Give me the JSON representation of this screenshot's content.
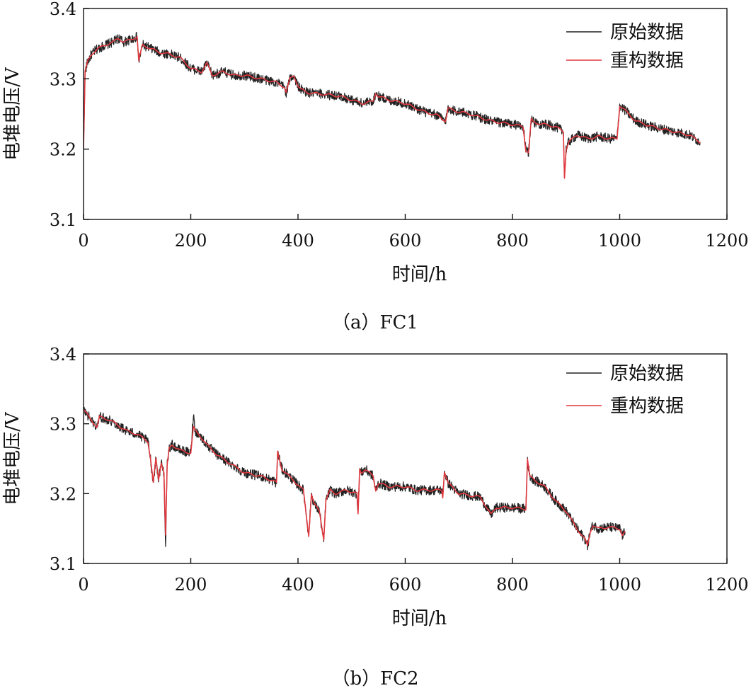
{
  "chart_data": [
    {
      "type": "line",
      "caption": "（a）FC1",
      "xlabel": "时间/h",
      "ylabel": "电堆电压/V",
      "xlim": [
        0,
        1200
      ],
      "ylim": [
        3.1,
        3.4
      ],
      "xticks": [
        0,
        200,
        400,
        600,
        800,
        1000,
        1200
      ],
      "yticks": [
        3.1,
        3.2,
        3.3,
        3.4
      ],
      "ytick_labels": [
        "3.1",
        "3.2",
        "3.3",
        "3.4"
      ],
      "legend_position": "top-right",
      "grid": false,
      "series": [
        {
          "name": "原始数据",
          "color": "#222222",
          "noise": 0.007,
          "x": [
            0,
            3,
            8,
            15,
            25,
            40,
            55,
            65,
            75,
            85,
            95,
            100,
            103,
            110,
            120,
            140,
            160,
            180,
            200,
            220,
            230,
            240,
            260,
            280,
            300,
            330,
            360,
            375,
            378,
            385,
            392,
            400,
            405,
            420,
            450,
            480,
            500,
            520,
            540,
            545,
            550,
            570,
            600,
            620,
            640,
            660,
            675,
            680,
            690,
            720,
            760,
            800,
            820,
            825,
            830,
            835,
            840,
            860,
            880,
            895,
            897,
            900,
            905,
            920,
            940,
            960,
            980,
            990,
            995,
            1000,
            1010,
            1030,
            1060,
            1100,
            1130,
            1150
          ],
          "y": [
            3.2,
            3.31,
            3.325,
            3.335,
            3.342,
            3.348,
            3.352,
            3.358,
            3.352,
            3.355,
            3.358,
            3.36,
            3.325,
            3.348,
            3.345,
            3.338,
            3.335,
            3.33,
            3.315,
            3.31,
            3.322,
            3.305,
            3.31,
            3.305,
            3.305,
            3.3,
            3.295,
            3.288,
            3.28,
            3.3,
            3.305,
            3.29,
            3.285,
            3.28,
            3.278,
            3.275,
            3.27,
            3.265,
            3.268,
            3.28,
            3.275,
            3.27,
            3.265,
            3.258,
            3.252,
            3.248,
            3.24,
            3.258,
            3.255,
            3.25,
            3.24,
            3.235,
            3.232,
            3.198,
            3.195,
            3.242,
            3.238,
            3.235,
            3.232,
            3.225,
            3.16,
            3.2,
            3.21,
            3.22,
            3.215,
            3.218,
            3.215,
            3.215,
            3.215,
            3.262,
            3.255,
            3.24,
            3.232,
            3.225,
            3.22,
            3.21
          ]
        },
        {
          "name": "重构数据",
          "color": "#e0383e",
          "noise": 0.0,
          "x": [
            0,
            3,
            8,
            15,
            25,
            40,
            55,
            65,
            75,
            85,
            95,
            100,
            103,
            110,
            120,
            140,
            160,
            180,
            200,
            220,
            230,
            240,
            260,
            280,
            300,
            330,
            360,
            375,
            378,
            385,
            392,
            400,
            405,
            420,
            450,
            480,
            500,
            520,
            540,
            545,
            550,
            570,
            600,
            620,
            640,
            660,
            675,
            680,
            690,
            720,
            760,
            800,
            820,
            825,
            830,
            835,
            840,
            860,
            880,
            895,
            897,
            900,
            905,
            920,
            940,
            960,
            980,
            990,
            995,
            1000,
            1010,
            1030,
            1060,
            1100,
            1130,
            1150
          ],
          "y": [
            3.2,
            3.31,
            3.325,
            3.335,
            3.342,
            3.348,
            3.352,
            3.358,
            3.352,
            3.355,
            3.358,
            3.36,
            3.325,
            3.348,
            3.345,
            3.338,
            3.335,
            3.33,
            3.315,
            3.31,
            3.322,
            3.305,
            3.31,
            3.305,
            3.305,
            3.3,
            3.295,
            3.288,
            3.28,
            3.3,
            3.305,
            3.29,
            3.285,
            3.28,
            3.278,
            3.275,
            3.27,
            3.265,
            3.268,
            3.28,
            3.275,
            3.27,
            3.265,
            3.258,
            3.252,
            3.248,
            3.24,
            3.258,
            3.255,
            3.25,
            3.24,
            3.235,
            3.232,
            3.198,
            3.195,
            3.242,
            3.238,
            3.235,
            3.232,
            3.225,
            3.16,
            3.2,
            3.21,
            3.22,
            3.215,
            3.218,
            3.215,
            3.215,
            3.215,
            3.262,
            3.255,
            3.24,
            3.232,
            3.225,
            3.22,
            3.21
          ]
        }
      ]
    },
    {
      "type": "line",
      "caption": "（b）FC2",
      "xlabel": "时间/h",
      "ylabel": "电堆电压/V",
      "xlim": [
        0,
        1200
      ],
      "ylim": [
        3.1,
        3.4
      ],
      "xticks": [
        0,
        200,
        400,
        600,
        800,
        1000,
        1200
      ],
      "yticks": [
        3.1,
        3.2,
        3.3,
        3.4
      ],
      "ytick_labels": [
        "3.1",
        "3.2",
        "3.3",
        "3.4"
      ],
      "legend_position": "top-right",
      "grid": false,
      "series": [
        {
          "name": "原始数据",
          "color": "#222222",
          "noise": 0.007,
          "x": [
            0,
            10,
            20,
            25,
            30,
            50,
            80,
            100,
            120,
            125,
            130,
            135,
            140,
            145,
            150,
            153,
            156,
            160,
            165,
            180,
            200,
            205,
            208,
            215,
            230,
            250,
            270,
            300,
            330,
            355,
            360,
            362,
            370,
            390,
            410,
            420,
            425,
            430,
            440,
            448,
            452,
            460,
            470,
            490,
            510,
            512,
            515,
            518,
            525,
            540,
            545,
            550,
            570,
            600,
            620,
            650,
            668,
            670,
            673,
            680,
            700,
            740,
            760,
            770,
            780,
            800,
            825,
            828,
            832,
            840,
            860,
            880,
            900,
            920,
            935,
            940,
            945,
            950,
            960,
            980,
            1000,
            1005,
            1010
          ],
          "y": [
            3.32,
            3.31,
            3.3,
            3.295,
            3.31,
            3.305,
            3.29,
            3.285,
            3.275,
            3.25,
            3.215,
            3.25,
            3.22,
            3.245,
            3.23,
            3.12,
            3.24,
            3.265,
            3.27,
            3.262,
            3.258,
            3.315,
            3.29,
            3.285,
            3.27,
            3.255,
            3.245,
            3.23,
            3.225,
            3.218,
            3.215,
            3.26,
            3.235,
            3.22,
            3.205,
            3.14,
            3.2,
            3.185,
            3.175,
            3.13,
            3.19,
            3.205,
            3.2,
            3.205,
            3.2,
            3.17,
            3.235,
            3.23,
            3.235,
            3.225,
            3.205,
            3.215,
            3.21,
            3.21,
            3.205,
            3.205,
            3.205,
            3.195,
            3.232,
            3.215,
            3.2,
            3.195,
            3.17,
            3.18,
            3.18,
            3.18,
            3.178,
            3.25,
            3.225,
            3.22,
            3.21,
            3.19,
            3.175,
            3.15,
            3.135,
            3.125,
            3.145,
            3.155,
            3.15,
            3.152,
            3.15,
            3.14,
            3.145
          ]
        },
        {
          "name": "重构数据",
          "color": "#e0383e",
          "noise": 0.0,
          "x": [
            0,
            10,
            20,
            25,
            30,
            50,
            80,
            100,
            120,
            125,
            130,
            135,
            140,
            145,
            150,
            153,
            156,
            160,
            165,
            180,
            200,
            205,
            208,
            215,
            230,
            250,
            270,
            300,
            330,
            355,
            360,
            362,
            370,
            390,
            410,
            420,
            425,
            430,
            440,
            448,
            452,
            460,
            470,
            490,
            510,
            512,
            515,
            518,
            525,
            540,
            545,
            550,
            570,
            600,
            620,
            650,
            668,
            670,
            673,
            680,
            700,
            740,
            760,
            770,
            780,
            800,
            825,
            828,
            832,
            840,
            860,
            880,
            900,
            920,
            935,
            940,
            945,
            950,
            960,
            980,
            1000,
            1005,
            1010
          ],
          "y": [
            3.32,
            3.31,
            3.3,
            3.295,
            3.31,
            3.305,
            3.29,
            3.285,
            3.275,
            3.25,
            3.215,
            3.25,
            3.22,
            3.245,
            3.23,
            3.14,
            3.24,
            3.265,
            3.27,
            3.262,
            3.258,
            3.295,
            3.29,
            3.285,
            3.27,
            3.255,
            3.245,
            3.23,
            3.225,
            3.218,
            3.215,
            3.26,
            3.235,
            3.22,
            3.205,
            3.14,
            3.2,
            3.185,
            3.175,
            3.135,
            3.19,
            3.205,
            3.2,
            3.205,
            3.2,
            3.17,
            3.235,
            3.23,
            3.235,
            3.225,
            3.205,
            3.215,
            3.21,
            3.21,
            3.205,
            3.205,
            3.205,
            3.195,
            3.232,
            3.215,
            3.2,
            3.195,
            3.17,
            3.18,
            3.18,
            3.18,
            3.178,
            3.25,
            3.225,
            3.22,
            3.21,
            3.19,
            3.175,
            3.15,
            3.135,
            3.125,
            3.145,
            3.155,
            3.15,
            3.152,
            3.15,
            3.14,
            3.145
          ]
        }
      ]
    }
  ]
}
